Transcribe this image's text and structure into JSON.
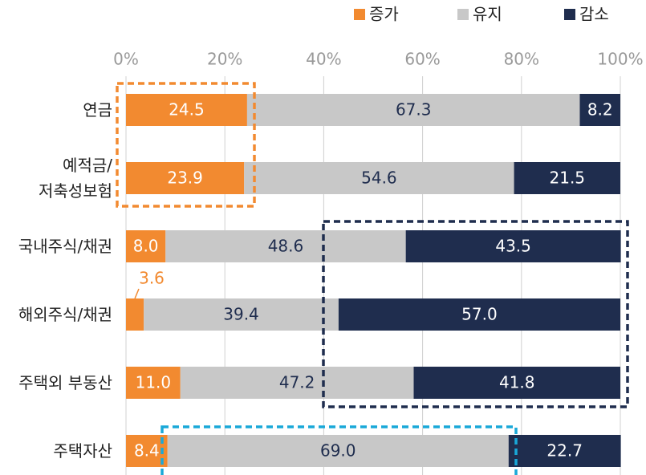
{
  "chart_data": {
    "type": "stacked-barh",
    "categories": [
      "연금",
      "예적금/\n저축성보험",
      "국내주식/채권",
      "해외주식/채권",
      "주택외 부동산",
      "주택자산"
    ],
    "series": [
      {
        "name": "증가",
        "color": "#f28a30",
        "values": [
          24.5,
          23.9,
          8.0,
          3.6,
          11.0,
          8.4
        ],
        "value_labels": [
          "24.5",
          "23.9",
          "8.0",
          "3.6",
          "11.0",
          "8.4"
        ]
      },
      {
        "name": "유지",
        "color": "#c8c8c8",
        "values": [
          67.3,
          54.6,
          48.6,
          39.4,
          47.2,
          69.0
        ],
        "value_labels": [
          "67.3",
          "54.6",
          "48.6",
          "39.4",
          "47.2",
          "69.0"
        ]
      },
      {
        "name": "감소",
        "color": "#1f2d4e",
        "values": [
          8.2,
          21.5,
          43.5,
          57.0,
          41.8,
          22.7
        ],
        "value_labels": [
          "8.2",
          "21.5",
          "43.5",
          "57.0",
          "41.8",
          "22.7"
        ]
      }
    ],
    "xlim": [
      0,
      100
    ],
    "xticks": [
      {
        "value": 0,
        "label": "0%"
      },
      {
        "value": 20,
        "label": "20%"
      },
      {
        "value": 40,
        "label": "40%"
      },
      {
        "value": 60,
        "label": "60%"
      },
      {
        "value": 80,
        "label": "80%"
      },
      {
        "value": 100,
        "label": "100%"
      }
    ],
    "grid": true,
    "legend": "top-right"
  }
}
